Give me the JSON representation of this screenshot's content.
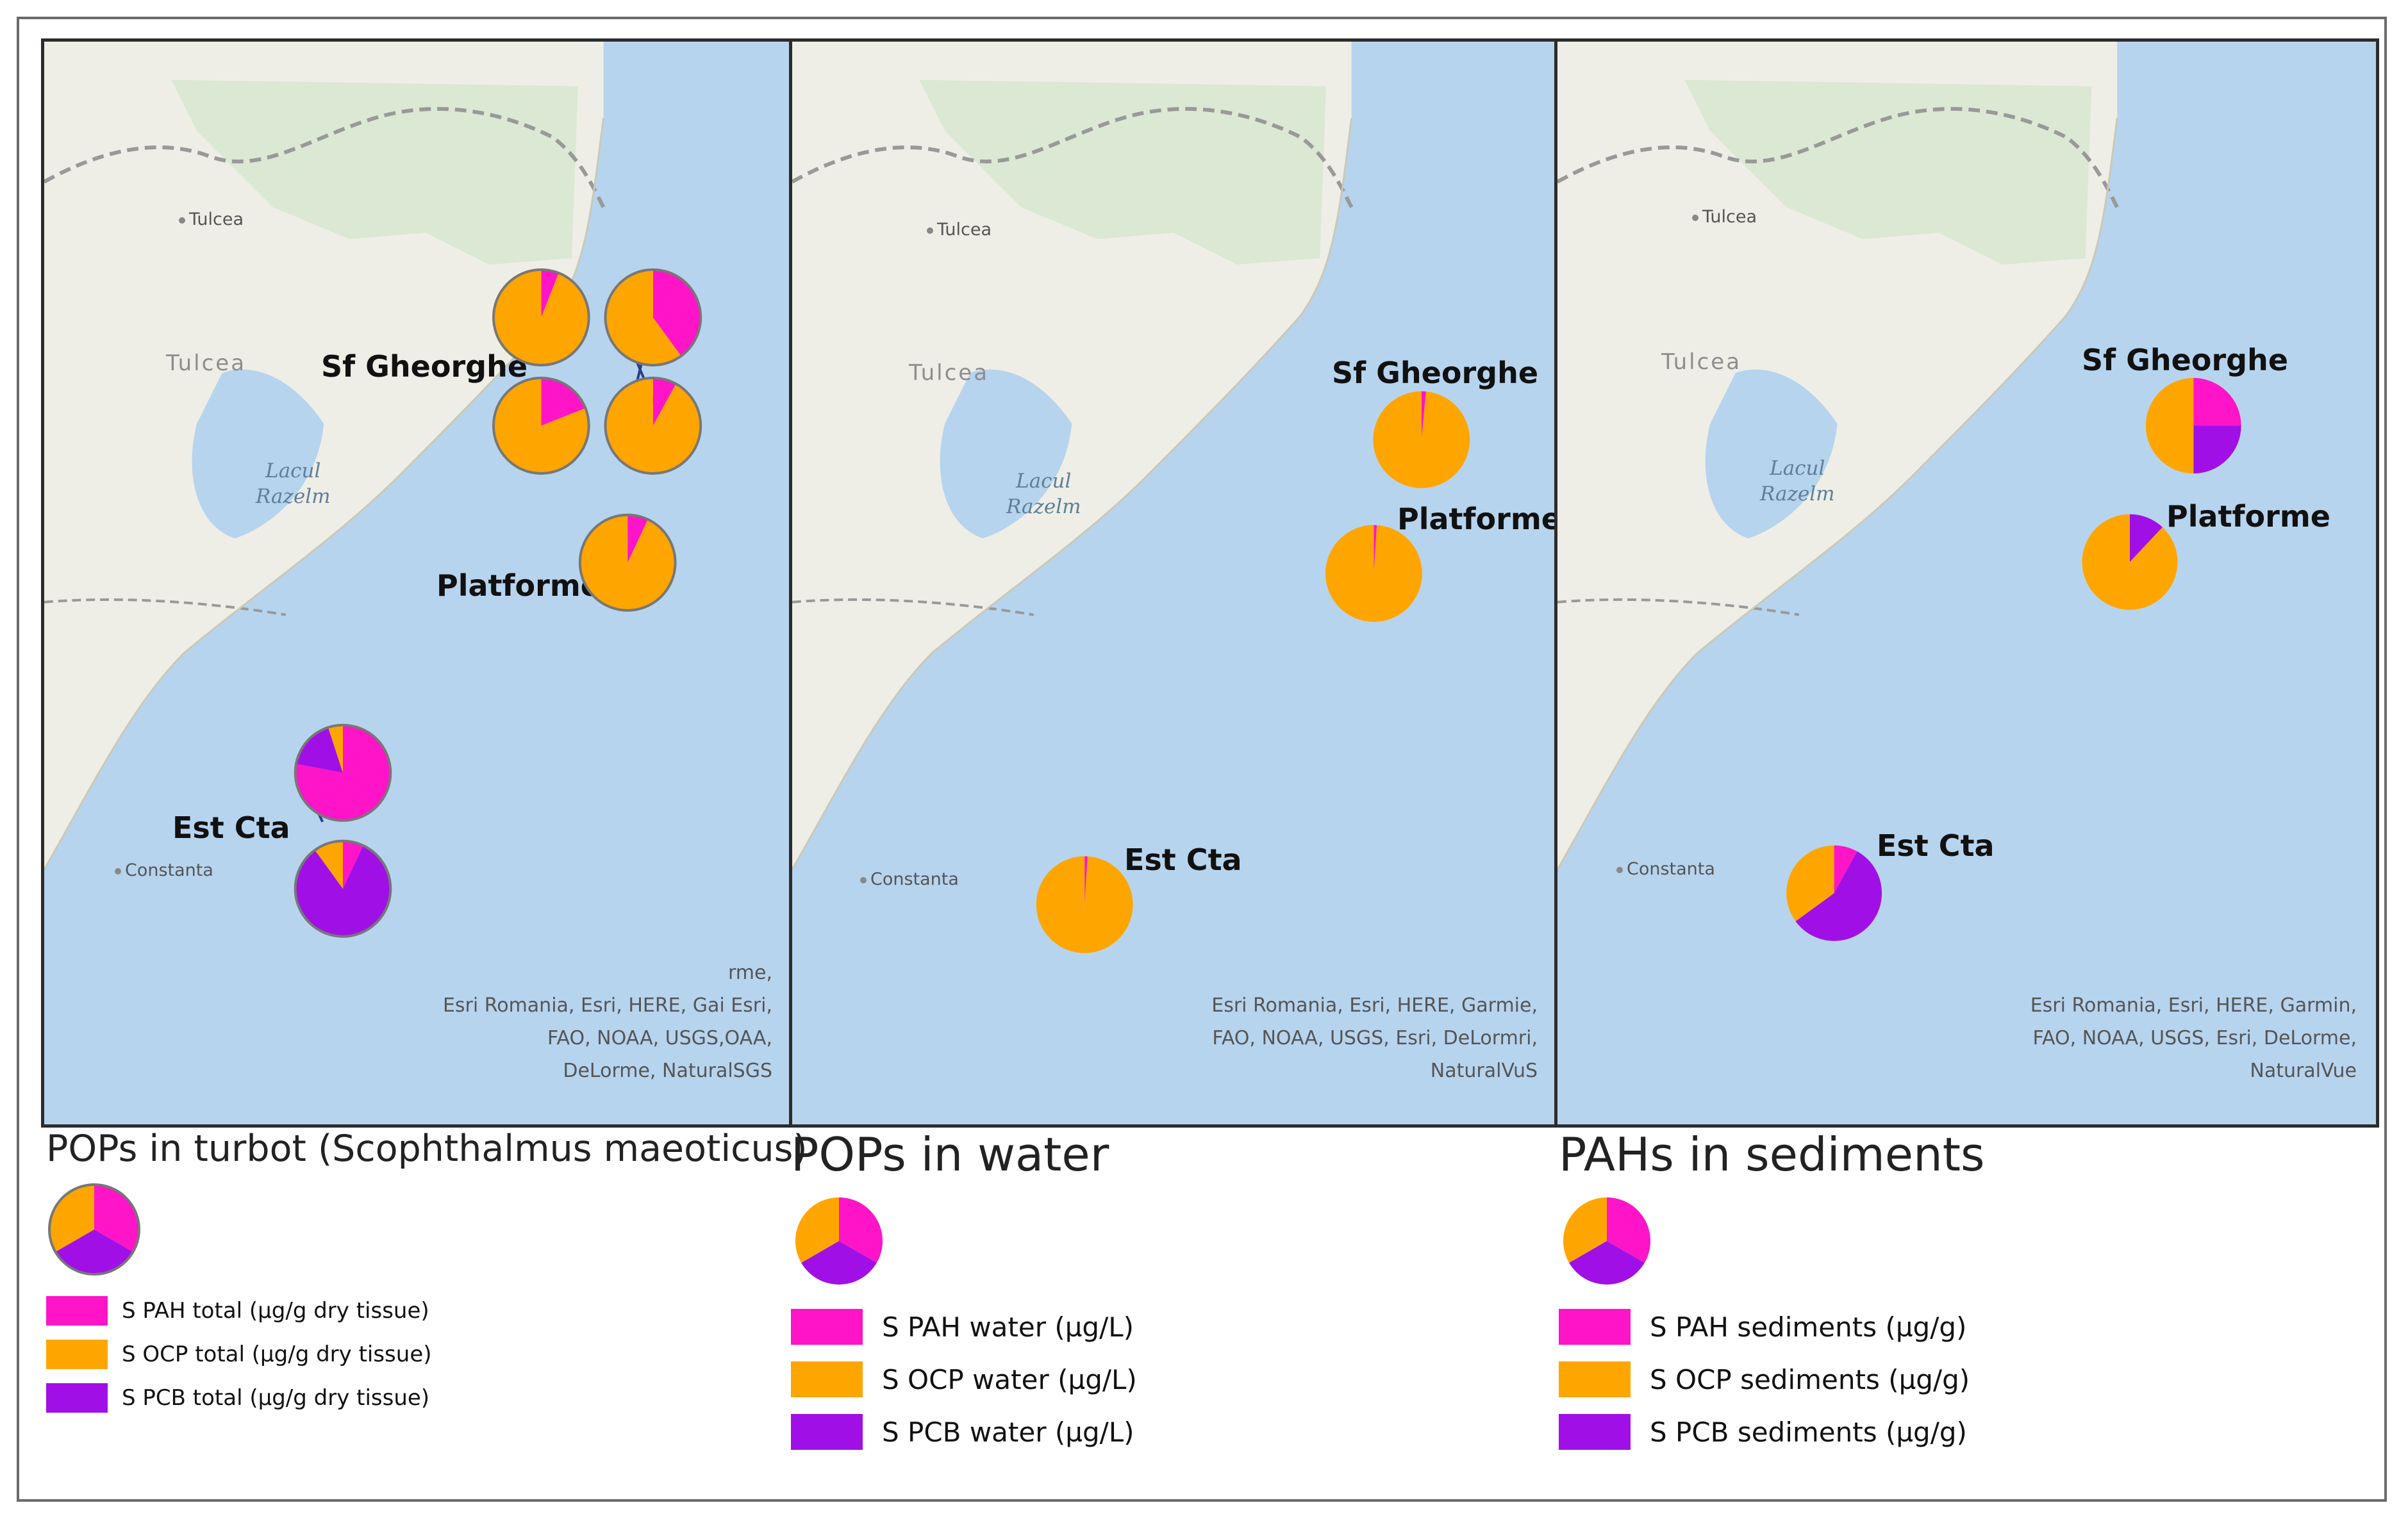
{
  "colors": {
    "pah": "#ff14c8",
    "ocp": "#ffa500",
    "pcb": "#a010e6",
    "sea": "#b7d4ee",
    "land": "#eeeee6",
    "pie_outline": "#777777"
  },
  "map_labels": {
    "town_north": "Tulcea",
    "region": "Tulcea",
    "lake_line1": "Lacul",
    "lake_line2": "Razelm",
    "town_south": "Constanta"
  },
  "panels": [
    {
      "id": "turbot",
      "sites": {
        "sf_gheorghe": "Sf Gheorghe",
        "platforme": "Platforme",
        "est_cta": "Est Cta"
      },
      "pies": [
        {
          "fractions": {
            "pah": 0.06,
            "ocp": 0.94,
            "pcb": 0
          }
        },
        {
          "fractions": {
            "pah": 0.4,
            "ocp": 0.6,
            "pcb": 0
          }
        },
        {
          "fractions": {
            "pah": 0.19,
            "ocp": 0.81,
            "pcb": 0
          }
        },
        {
          "fractions": {
            "pah": 0.08,
            "ocp": 0.92,
            "pcb": 0
          }
        },
        {
          "fractions": {
            "pah": 0.07,
            "ocp": 0.93,
            "pcb": 0
          }
        },
        {
          "fractions": {
            "pah": 0.78,
            "ocp": 0.05,
            "pcb": 0.17
          }
        },
        {
          "fractions": {
            "pah": 0.07,
            "ocp": 0.1,
            "pcb": 0.83
          }
        }
      ],
      "attribution": [
        "rme,",
        "Esri Romania, Esri, HERE, Gai Esri,",
        "FAO, NOAA, USGS,OAA,",
        "DeLorme, NaturalSGS"
      ],
      "legend": {
        "title": "POPs in turbot (Scophthalmus maeoticus)",
        "items": [
          "S PAH total (µg/g dry tissue)",
          "S OCP total (µg/g dry tissue)",
          "S PCB total (µg/g dry tissue)"
        ]
      }
    },
    {
      "id": "water",
      "sites": {
        "sf_gheorghe": "Sf Gheorghe",
        "platforme": "Platforme",
        "est_cta": "Est Cta"
      },
      "pies": [
        {
          "fractions": {
            "pah": 0.015,
            "ocp": 0.985,
            "pcb": 0
          }
        },
        {
          "fractions": {
            "pah": 0.01,
            "ocp": 0.99,
            "pcb": 0
          }
        },
        {
          "fractions": {
            "pah": 0.01,
            "ocp": 0.99,
            "pcb": 0
          }
        }
      ],
      "attribution": [
        "Esri Romania, Esri, HERE, Garmie,",
        "FAO, NOAA, USGS, Esri, DeLormri,",
        "NaturalVuS"
      ],
      "legend": {
        "title": "POPs in water",
        "items": [
          "S PAH water (µg/L)",
          "S OCP water (µg/L)",
          "S PCB water (µg/L)"
        ]
      }
    },
    {
      "id": "sediments",
      "sites": {
        "sf_gheorghe": "Sf Gheorghe",
        "platforme": "Platforme",
        "est_cta": "Est Cta"
      },
      "pies": [
        {
          "fractions": {
            "pah": 0.25,
            "ocp": 0.5,
            "pcb": 0.25
          }
        },
        {
          "fractions": {
            "pah": 0,
            "ocp": 0.88,
            "pcb": 0.12
          }
        },
        {
          "fractions": {
            "pah": 0.08,
            "ocp": 0.35,
            "pcb": 0.57
          }
        }
      ],
      "attribution": [
        "Esri Romania, Esri, HERE, Garmin,",
        "FAO, NOAA, USGS, Esri, DeLorme,",
        "NaturalVue"
      ],
      "legend": {
        "title": "PAHs in sediments",
        "items": [
          "S PAH sediments (µg/g)",
          "S OCP sediments (µg/g)",
          "S PCB sediments (µg/g)"
        ]
      }
    }
  ]
}
